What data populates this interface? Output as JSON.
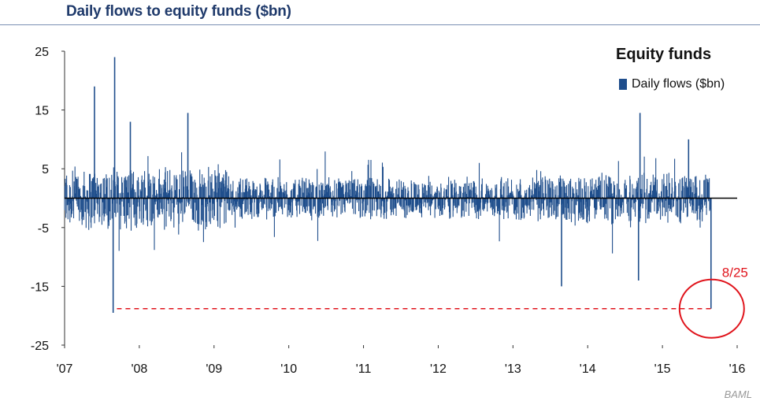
{
  "title": "Daily flows to equity funds ($bn)",
  "source": "BAML",
  "chart_data": {
    "type": "bar",
    "legend_title": "Equity funds",
    "legend": [
      {
        "name": "Daily flows ($bn)",
        "color": "#1f4e8c"
      }
    ],
    "legend_position": "top-right",
    "ylim": [
      -25,
      25
    ],
    "yticks": [
      25,
      15,
      5,
      -5,
      -15,
      -25
    ],
    "xlim": [
      2007.0,
      2016.0
    ],
    "xticks": [
      {
        "value": 2007,
        "label": "'07"
      },
      {
        "value": 2008,
        "label": "'08"
      },
      {
        "value": 2009,
        "label": "'09"
      },
      {
        "value": 2010,
        "label": "'10"
      },
      {
        "value": 2011,
        "label": "'11"
      },
      {
        "value": 2012,
        "label": "'12"
      },
      {
        "value": 2013,
        "label": "'13"
      },
      {
        "value": 2014,
        "label": "'14"
      },
      {
        "value": 2015,
        "label": "'15"
      },
      {
        "value": 2016,
        "label": "'16"
      }
    ],
    "series": [
      {
        "color": "#1f4e8c",
        "notable_points": [
          {
            "x": 2007.4,
            "y": 19
          },
          {
            "x": 2007.67,
            "y": 24
          },
          {
            "x": 2007.65,
            "y": -19.5
          },
          {
            "x": 2007.88,
            "y": 13
          },
          {
            "x": 2008.65,
            "y": 14.5
          },
          {
            "x": 2013.65,
            "y": -15
          },
          {
            "x": 2014.7,
            "y": 14.5
          },
          {
            "x": 2014.68,
            "y": -14
          },
          {
            "x": 2015.35,
            "y": 10
          },
          {
            "x": 2015.65,
            "y": -18.8
          }
        ]
      }
    ],
    "annotation": {
      "label": "8/25",
      "x": 2015.65,
      "y": -18.8,
      "color": "#e0141c"
    },
    "reference_line": {
      "y": -18.8,
      "color": "#e0141c",
      "from_x": 2007.7,
      "to_x": 2015.65
    }
  }
}
